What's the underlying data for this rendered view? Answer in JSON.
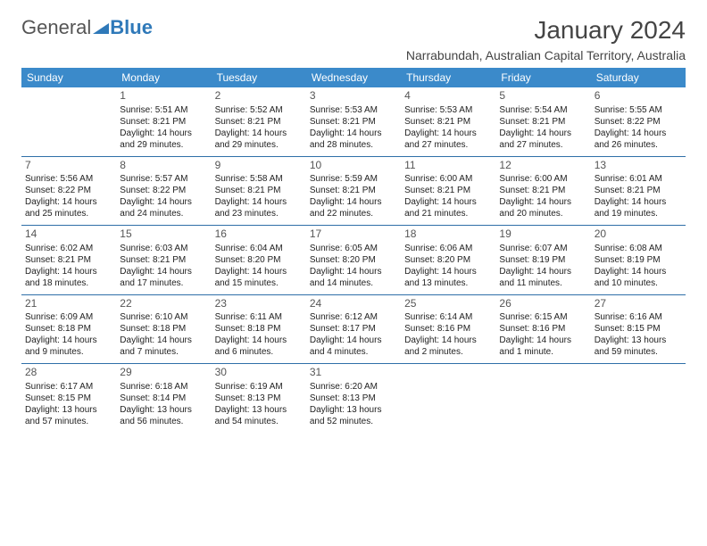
{
  "logo": {
    "part1": "General",
    "part2": "Blue"
  },
  "title": "January 2024",
  "location": "Narrabundah, Australian Capital Territory, Australia",
  "colors": {
    "header_bg": "#3b8aca",
    "header_text": "#ffffff",
    "row_border": "#2f6fa8",
    "logo_blue": "#2f79b9",
    "text": "#222222"
  },
  "weekdays": [
    "Sunday",
    "Monday",
    "Tuesday",
    "Wednesday",
    "Thursday",
    "Friday",
    "Saturday"
  ],
  "weeks": [
    [
      null,
      {
        "n": "1",
        "sr": "Sunrise: 5:51 AM",
        "ss": "Sunset: 8:21 PM",
        "d1": "Daylight: 14 hours",
        "d2": "and 29 minutes."
      },
      {
        "n": "2",
        "sr": "Sunrise: 5:52 AM",
        "ss": "Sunset: 8:21 PM",
        "d1": "Daylight: 14 hours",
        "d2": "and 29 minutes."
      },
      {
        "n": "3",
        "sr": "Sunrise: 5:53 AM",
        "ss": "Sunset: 8:21 PM",
        "d1": "Daylight: 14 hours",
        "d2": "and 28 minutes."
      },
      {
        "n": "4",
        "sr": "Sunrise: 5:53 AM",
        "ss": "Sunset: 8:21 PM",
        "d1": "Daylight: 14 hours",
        "d2": "and 27 minutes."
      },
      {
        "n": "5",
        "sr": "Sunrise: 5:54 AM",
        "ss": "Sunset: 8:21 PM",
        "d1": "Daylight: 14 hours",
        "d2": "and 27 minutes."
      },
      {
        "n": "6",
        "sr": "Sunrise: 5:55 AM",
        "ss": "Sunset: 8:22 PM",
        "d1": "Daylight: 14 hours",
        "d2": "and 26 minutes."
      }
    ],
    [
      {
        "n": "7",
        "sr": "Sunrise: 5:56 AM",
        "ss": "Sunset: 8:22 PM",
        "d1": "Daylight: 14 hours",
        "d2": "and 25 minutes."
      },
      {
        "n": "8",
        "sr": "Sunrise: 5:57 AM",
        "ss": "Sunset: 8:22 PM",
        "d1": "Daylight: 14 hours",
        "d2": "and 24 minutes."
      },
      {
        "n": "9",
        "sr": "Sunrise: 5:58 AM",
        "ss": "Sunset: 8:21 PM",
        "d1": "Daylight: 14 hours",
        "d2": "and 23 minutes."
      },
      {
        "n": "10",
        "sr": "Sunrise: 5:59 AM",
        "ss": "Sunset: 8:21 PM",
        "d1": "Daylight: 14 hours",
        "d2": "and 22 minutes."
      },
      {
        "n": "11",
        "sr": "Sunrise: 6:00 AM",
        "ss": "Sunset: 8:21 PM",
        "d1": "Daylight: 14 hours",
        "d2": "and 21 minutes."
      },
      {
        "n": "12",
        "sr": "Sunrise: 6:00 AM",
        "ss": "Sunset: 8:21 PM",
        "d1": "Daylight: 14 hours",
        "d2": "and 20 minutes."
      },
      {
        "n": "13",
        "sr": "Sunrise: 6:01 AM",
        "ss": "Sunset: 8:21 PM",
        "d1": "Daylight: 14 hours",
        "d2": "and 19 minutes."
      }
    ],
    [
      {
        "n": "14",
        "sr": "Sunrise: 6:02 AM",
        "ss": "Sunset: 8:21 PM",
        "d1": "Daylight: 14 hours",
        "d2": "and 18 minutes."
      },
      {
        "n": "15",
        "sr": "Sunrise: 6:03 AM",
        "ss": "Sunset: 8:21 PM",
        "d1": "Daylight: 14 hours",
        "d2": "and 17 minutes."
      },
      {
        "n": "16",
        "sr": "Sunrise: 6:04 AM",
        "ss": "Sunset: 8:20 PM",
        "d1": "Daylight: 14 hours",
        "d2": "and 15 minutes."
      },
      {
        "n": "17",
        "sr": "Sunrise: 6:05 AM",
        "ss": "Sunset: 8:20 PM",
        "d1": "Daylight: 14 hours",
        "d2": "and 14 minutes."
      },
      {
        "n": "18",
        "sr": "Sunrise: 6:06 AM",
        "ss": "Sunset: 8:20 PM",
        "d1": "Daylight: 14 hours",
        "d2": "and 13 minutes."
      },
      {
        "n": "19",
        "sr": "Sunrise: 6:07 AM",
        "ss": "Sunset: 8:19 PM",
        "d1": "Daylight: 14 hours",
        "d2": "and 11 minutes."
      },
      {
        "n": "20",
        "sr": "Sunrise: 6:08 AM",
        "ss": "Sunset: 8:19 PM",
        "d1": "Daylight: 14 hours",
        "d2": "and 10 minutes."
      }
    ],
    [
      {
        "n": "21",
        "sr": "Sunrise: 6:09 AM",
        "ss": "Sunset: 8:18 PM",
        "d1": "Daylight: 14 hours",
        "d2": "and 9 minutes."
      },
      {
        "n": "22",
        "sr": "Sunrise: 6:10 AM",
        "ss": "Sunset: 8:18 PM",
        "d1": "Daylight: 14 hours",
        "d2": "and 7 minutes."
      },
      {
        "n": "23",
        "sr": "Sunrise: 6:11 AM",
        "ss": "Sunset: 8:18 PM",
        "d1": "Daylight: 14 hours",
        "d2": "and 6 minutes."
      },
      {
        "n": "24",
        "sr": "Sunrise: 6:12 AM",
        "ss": "Sunset: 8:17 PM",
        "d1": "Daylight: 14 hours",
        "d2": "and 4 minutes."
      },
      {
        "n": "25",
        "sr": "Sunrise: 6:14 AM",
        "ss": "Sunset: 8:16 PM",
        "d1": "Daylight: 14 hours",
        "d2": "and 2 minutes."
      },
      {
        "n": "26",
        "sr": "Sunrise: 6:15 AM",
        "ss": "Sunset: 8:16 PM",
        "d1": "Daylight: 14 hours",
        "d2": "and 1 minute."
      },
      {
        "n": "27",
        "sr": "Sunrise: 6:16 AM",
        "ss": "Sunset: 8:15 PM",
        "d1": "Daylight: 13 hours",
        "d2": "and 59 minutes."
      }
    ],
    [
      {
        "n": "28",
        "sr": "Sunrise: 6:17 AM",
        "ss": "Sunset: 8:15 PM",
        "d1": "Daylight: 13 hours",
        "d2": "and 57 minutes."
      },
      {
        "n": "29",
        "sr": "Sunrise: 6:18 AM",
        "ss": "Sunset: 8:14 PM",
        "d1": "Daylight: 13 hours",
        "d2": "and 56 minutes."
      },
      {
        "n": "30",
        "sr": "Sunrise: 6:19 AM",
        "ss": "Sunset: 8:13 PM",
        "d1": "Daylight: 13 hours",
        "d2": "and 54 minutes."
      },
      {
        "n": "31",
        "sr": "Sunrise: 6:20 AM",
        "ss": "Sunset: 8:13 PM",
        "d1": "Daylight: 13 hours",
        "d2": "and 52 minutes."
      },
      null,
      null,
      null
    ]
  ]
}
